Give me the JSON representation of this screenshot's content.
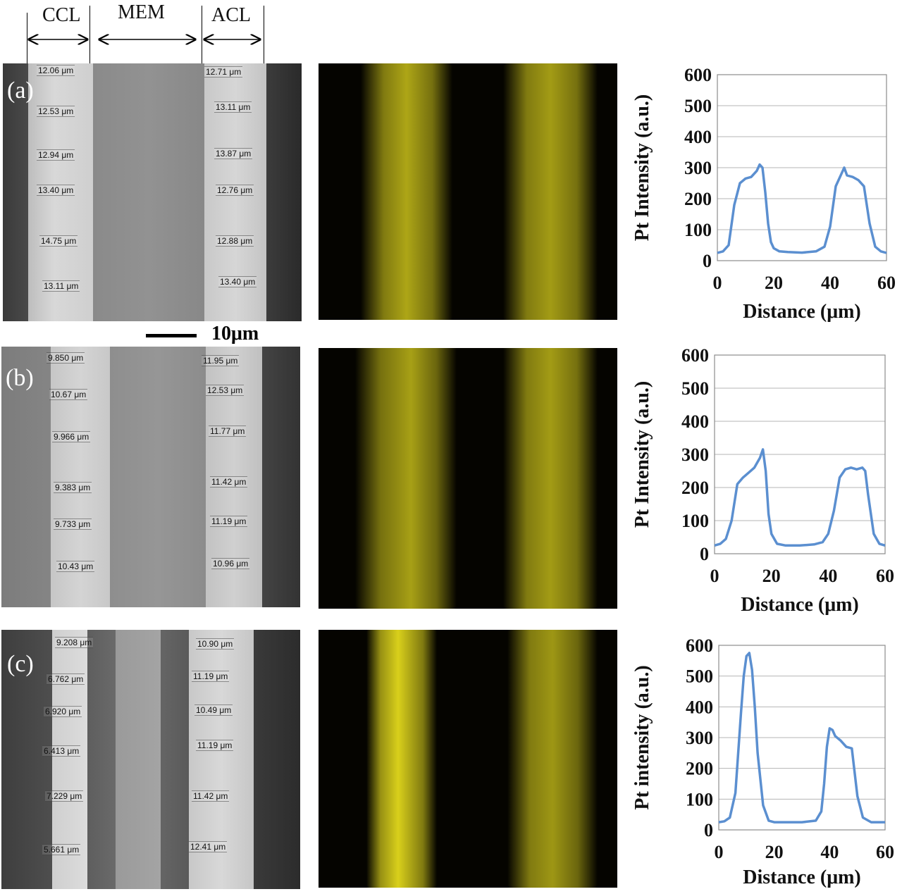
{
  "header": {
    "ccl": "CCL",
    "mem": "MEM",
    "acl": "ACL"
  },
  "scalebar": {
    "label": "10μm"
  },
  "panels": [
    {
      "label": "(a)",
      "ccl_measurements": [
        "12.06 μm",
        "12.53 μm",
        "12.94 μm",
        "13.40 μm",
        "14.75 μm",
        "13.11 μm"
      ],
      "acl_measurements": [
        "12.71 μm",
        "13.11 μm",
        "13.87 μm",
        "12.76 μm",
        "12.88 μm",
        "13.40 μm"
      ]
    },
    {
      "label": "(b)",
      "ccl_measurements": [
        "9.850 μm",
        "10.67 μm",
        "9.966 μm",
        "9.383 μm",
        "9.733 μm",
        "10.43 μm"
      ],
      "acl_measurements": [
        "11.95 μm",
        "12.53 μm",
        "11.77 μm",
        "11.42 μm",
        "11.19 μm",
        "10.96 μm"
      ]
    },
    {
      "label": "(c)",
      "ccl_measurements": [
        "9.208 μm",
        "6.762 μm",
        "6.920 μm",
        "6.413 μm",
        "7.229 μm",
        "5.661 μm"
      ],
      "acl_measurements": [
        "10.90 μm",
        "11.19 μm",
        "10.49 μm",
        "11.19 μm",
        "11.42 μm",
        "12.41 μm"
      ]
    }
  ],
  "colors": {
    "line": "#5b8fd0",
    "eds": "#e6dc1e",
    "sem_dark": "#3a3a3a",
    "sem_light": "#d8d8d8"
  },
  "chart_data": [
    {
      "type": "line",
      "ylabel": "Pt Intensity (a.u.)",
      "xlabel": "Distance (μm)",
      "xlim": [
        0,
        60
      ],
      "ylim": [
        0,
        600
      ],
      "xticks": [
        "0",
        "20",
        "40",
        "60"
      ],
      "yticks": [
        "0",
        "100",
        "200",
        "300",
        "400",
        "500",
        "600"
      ],
      "grid": true,
      "x": [
        0,
        2,
        4,
        6,
        8,
        10,
        12,
        14,
        15,
        16,
        17,
        18,
        19,
        20,
        22,
        25,
        30,
        35,
        38,
        40,
        42,
        44,
        45,
        46,
        48,
        50,
        52,
        54,
        56,
        58,
        60
      ],
      "y": [
        25,
        30,
        50,
        180,
        250,
        265,
        270,
        290,
        310,
        300,
        220,
        120,
        60,
        40,
        30,
        28,
        26,
        30,
        45,
        110,
        240,
        280,
        300,
        275,
        270,
        260,
        240,
        120,
        45,
        30,
        25
      ]
    },
    {
      "type": "line",
      "ylabel": "Pt Intensity (a.u.)",
      "xlabel": "Distance (μm)",
      "xlim": [
        0,
        60
      ],
      "ylim": [
        0,
        600
      ],
      "xticks": [
        "0",
        "20",
        "40",
        "60"
      ],
      "yticks": [
        "0",
        "100",
        "200",
        "300",
        "400",
        "500",
        "600"
      ],
      "grid": true,
      "x": [
        0,
        2,
        4,
        6,
        8,
        10,
        12,
        14,
        16,
        17,
        18,
        19,
        20,
        22,
        25,
        30,
        35,
        38,
        40,
        42,
        44,
        46,
        48,
        50,
        52,
        53,
        54,
        56,
        58,
        60
      ],
      "y": [
        25,
        30,
        45,
        100,
        210,
        230,
        245,
        260,
        290,
        315,
        250,
        120,
        60,
        30,
        25,
        25,
        28,
        35,
        60,
        130,
        230,
        255,
        260,
        255,
        260,
        250,
        180,
        60,
        30,
        25
      ]
    },
    {
      "type": "line",
      "ylabel": "Pt intensity (a.u.)",
      "xlabel": "Distance (μm)",
      "xlim": [
        0,
        60
      ],
      "ylim": [
        0,
        600
      ],
      "xticks": [
        "0",
        "20",
        "40",
        "60"
      ],
      "yticks": [
        "0",
        "100",
        "200",
        "300",
        "400",
        "500",
        "600"
      ],
      "grid": true,
      "x": [
        0,
        2,
        4,
        6,
        8,
        9,
        10,
        11,
        12,
        13,
        14,
        16,
        18,
        20,
        25,
        30,
        35,
        37,
        38,
        39,
        40,
        41,
        42,
        44,
        46,
        48,
        50,
        52,
        55,
        60
      ],
      "y": [
        25,
        28,
        40,
        120,
        380,
        500,
        565,
        575,
        520,
        400,
        250,
        80,
        30,
        25,
        25,
        25,
        30,
        60,
        150,
        270,
        330,
        325,
        305,
        290,
        270,
        265,
        110,
        40,
        25,
        25
      ]
    }
  ]
}
